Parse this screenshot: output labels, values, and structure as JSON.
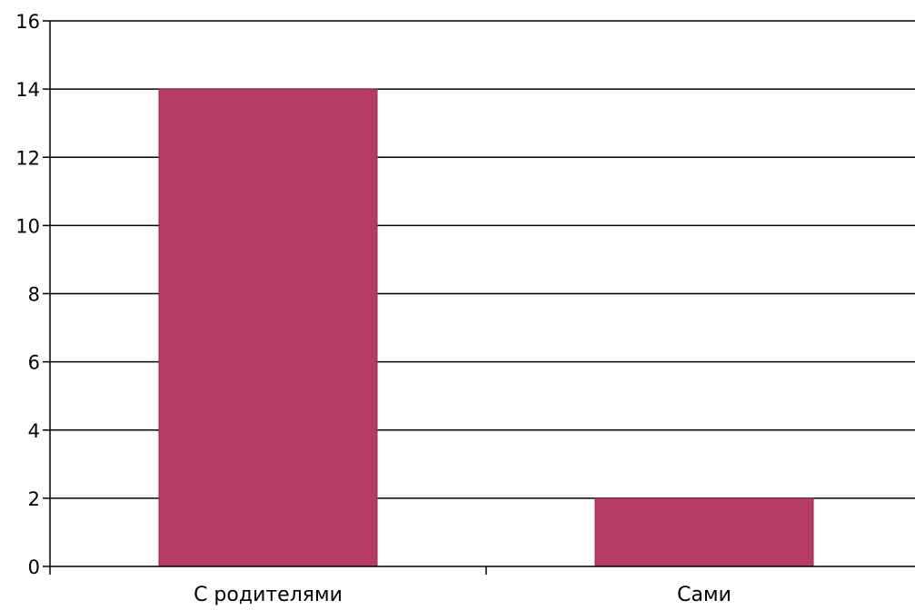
{
  "chart_data": {
    "type": "bar",
    "categories": [
      "С родителями",
      "Сами"
    ],
    "values": [
      14,
      2
    ],
    "ylim": [
      0,
      16
    ],
    "yticks": [
      0,
      2,
      4,
      6,
      8,
      10,
      12,
      14,
      16
    ],
    "grid": true,
    "bar_color": "#b83a66",
    "grid_color": "#000000",
    "title": "",
    "xlabel": "",
    "ylabel": ""
  }
}
